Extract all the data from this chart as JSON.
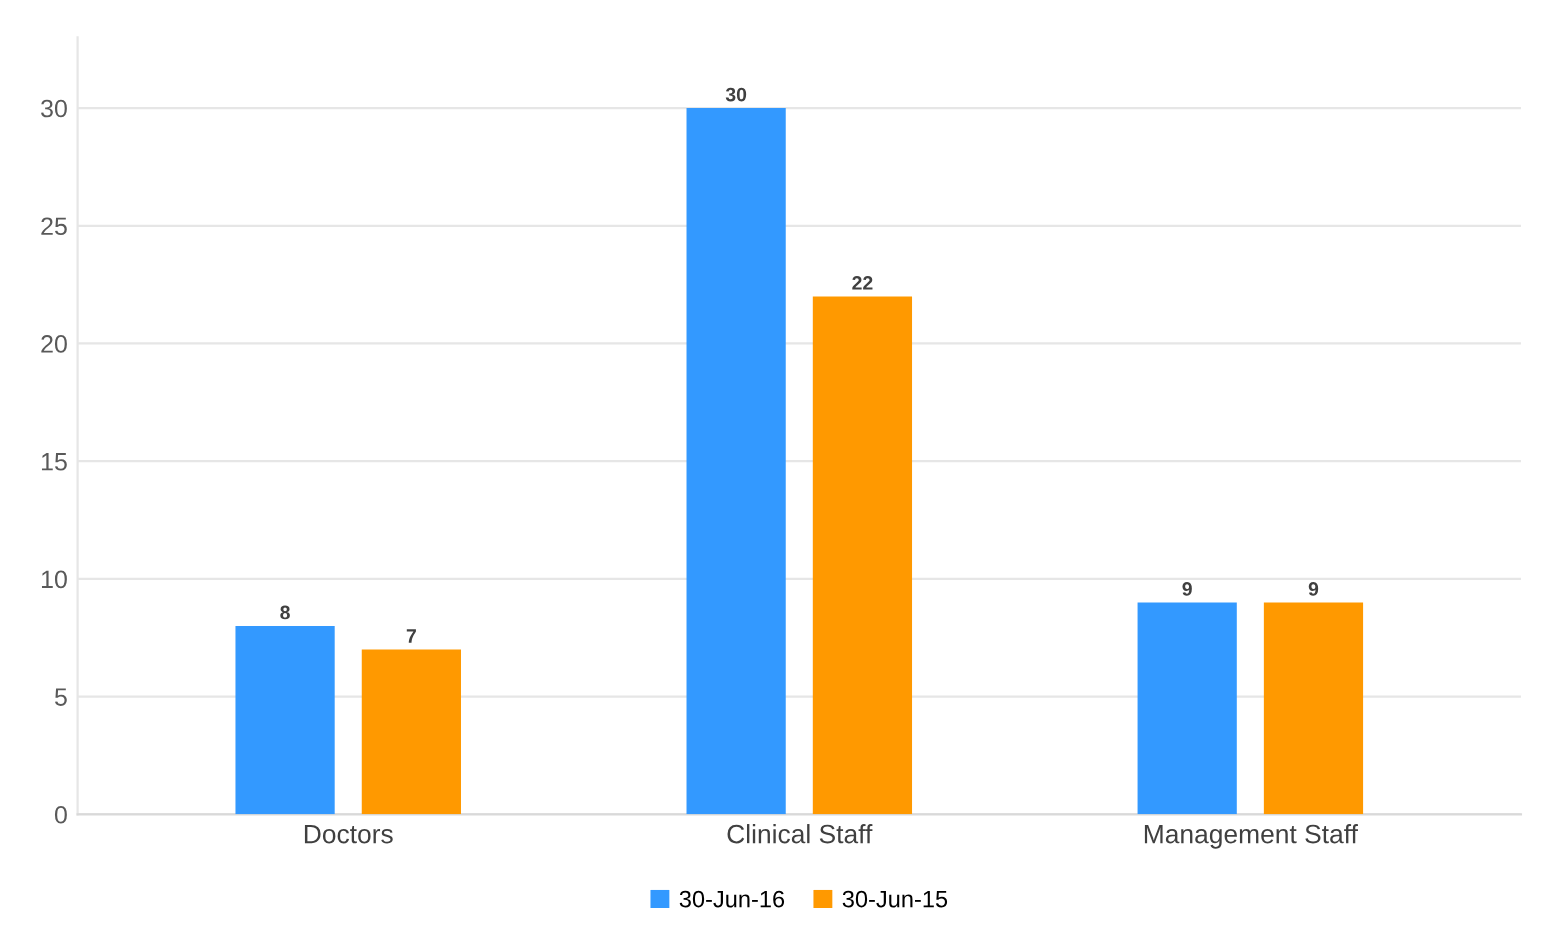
{
  "chart_data": {
    "type": "bar",
    "categories": [
      "Doctors",
      "Clinical Staff",
      "Management Staff"
    ],
    "series": [
      {
        "name": "30-Jun-16",
        "color": "#3399ff",
        "values": [
          8,
          30,
          9
        ]
      },
      {
        "name": "30-Jun-15",
        "color": "#ff9900",
        "values": [
          7,
          22,
          9
        ]
      }
    ],
    "ylim": [
      0,
      33
    ],
    "yticks": [
      0,
      5,
      10,
      15,
      20,
      25,
      30
    ],
    "grid": "y",
    "legend": "bottom",
    "data_labels": true
  }
}
